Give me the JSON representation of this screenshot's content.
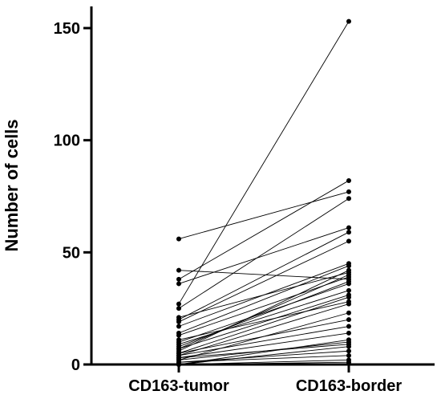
{
  "chart_data": {
    "type": "scatter",
    "title": "",
    "xlabel": "",
    "ylabel": "Number of cells",
    "categories": [
      "CD163-tumor",
      "CD163-border"
    ],
    "ylim": [
      0,
      150
    ],
    "yticks": [
      0,
      50,
      100,
      150
    ],
    "grid": false,
    "paired": true,
    "point_color": "#000000",
    "line_color": "#000000",
    "pairs": [
      [
        56,
        77
      ],
      [
        42,
        38
      ],
      [
        38,
        82
      ],
      [
        36,
        61
      ],
      [
        27,
        153
      ],
      [
        25,
        74
      ],
      [
        21,
        41
      ],
      [
        20,
        59
      ],
      [
        19,
        55
      ],
      [
        17,
        45
      ],
      [
        14,
        44
      ],
      [
        13,
        39
      ],
      [
        11,
        28
      ],
      [
        10,
        36
      ],
      [
        9,
        33
      ],
      [
        8,
        37
      ],
      [
        7,
        40
      ],
      [
        7,
        31
      ],
      [
        6,
        42
      ],
      [
        5,
        20
      ],
      [
        5,
        30
      ],
      [
        4,
        17
      ],
      [
        4,
        27
      ],
      [
        3,
        14
      ],
      [
        3,
        9
      ],
      [
        2,
        23
      ],
      [
        2,
        10
      ],
      [
        1,
        6
      ],
      [
        1,
        4
      ],
      [
        0,
        8
      ],
      [
        0,
        2
      ],
      [
        0,
        11
      ],
      [
        0,
        1
      ]
    ]
  }
}
